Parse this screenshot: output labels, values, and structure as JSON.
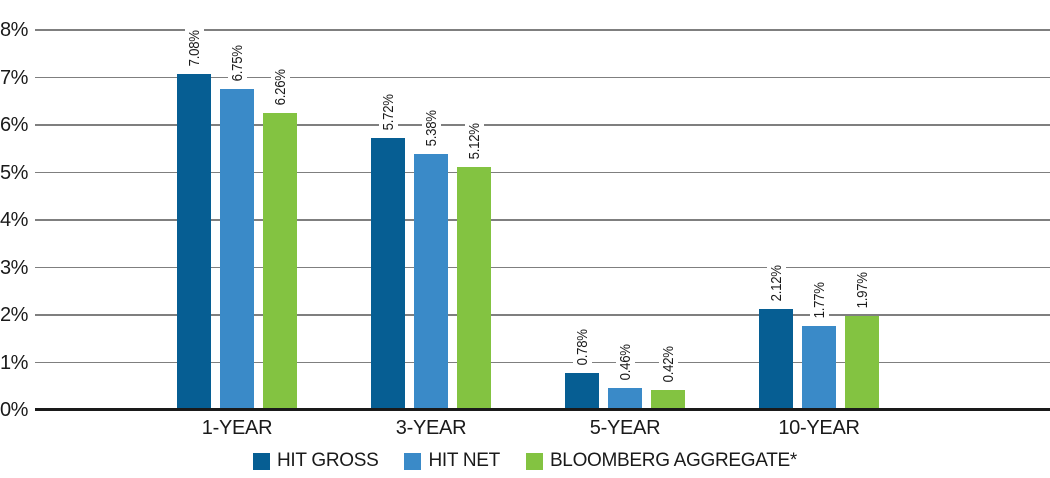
{
  "chart_data": {
    "type": "bar",
    "title": "",
    "categories": [
      "1-YEAR",
      "3-YEAR",
      "5-YEAR",
      "10-YEAR"
    ],
    "series": [
      {
        "name": "HIT GROSS",
        "color": "#065e93",
        "values": [
          7.08,
          5.72,
          0.78,
          2.12
        ],
        "value_labels": [
          "7.08%",
          "5.72%",
          "0.78%",
          "2.12%"
        ]
      },
      {
        "name": "HIT NET",
        "color": "#3a8ac8",
        "values": [
          6.75,
          5.38,
          0.46,
          1.77
        ],
        "value_labels": [
          "6.75%",
          "5.38%",
          "0.46%",
          "1.77%"
        ]
      },
      {
        "name": "BLOOMBERG AGGREGATE*",
        "color": "#83c341",
        "values": [
          6.26,
          5.12,
          0.42,
          1.97
        ],
        "value_labels": [
          "6.26%",
          "5.12%",
          "0.42%",
          "1.97%"
        ]
      }
    ],
    "y_axis": {
      "tick_labels": [
        "0%",
        "1%",
        "2%",
        "3%",
        "4%",
        "5%",
        "6%",
        "7%",
        "8%"
      ],
      "min": 0,
      "max": 8
    },
    "grid": "horizontal",
    "legend_position": "bottom-center",
    "bar_value_labels_rotated": true
  },
  "colors": {
    "hit_gross": "#065e93",
    "hit_net": "#3a8ac8",
    "bloomberg_aggregate": "#83c341",
    "gridline": "#7f7f7f",
    "axis": "#1a1a1a",
    "text": "#1a1a1a",
    "background": "#ffffff"
  }
}
